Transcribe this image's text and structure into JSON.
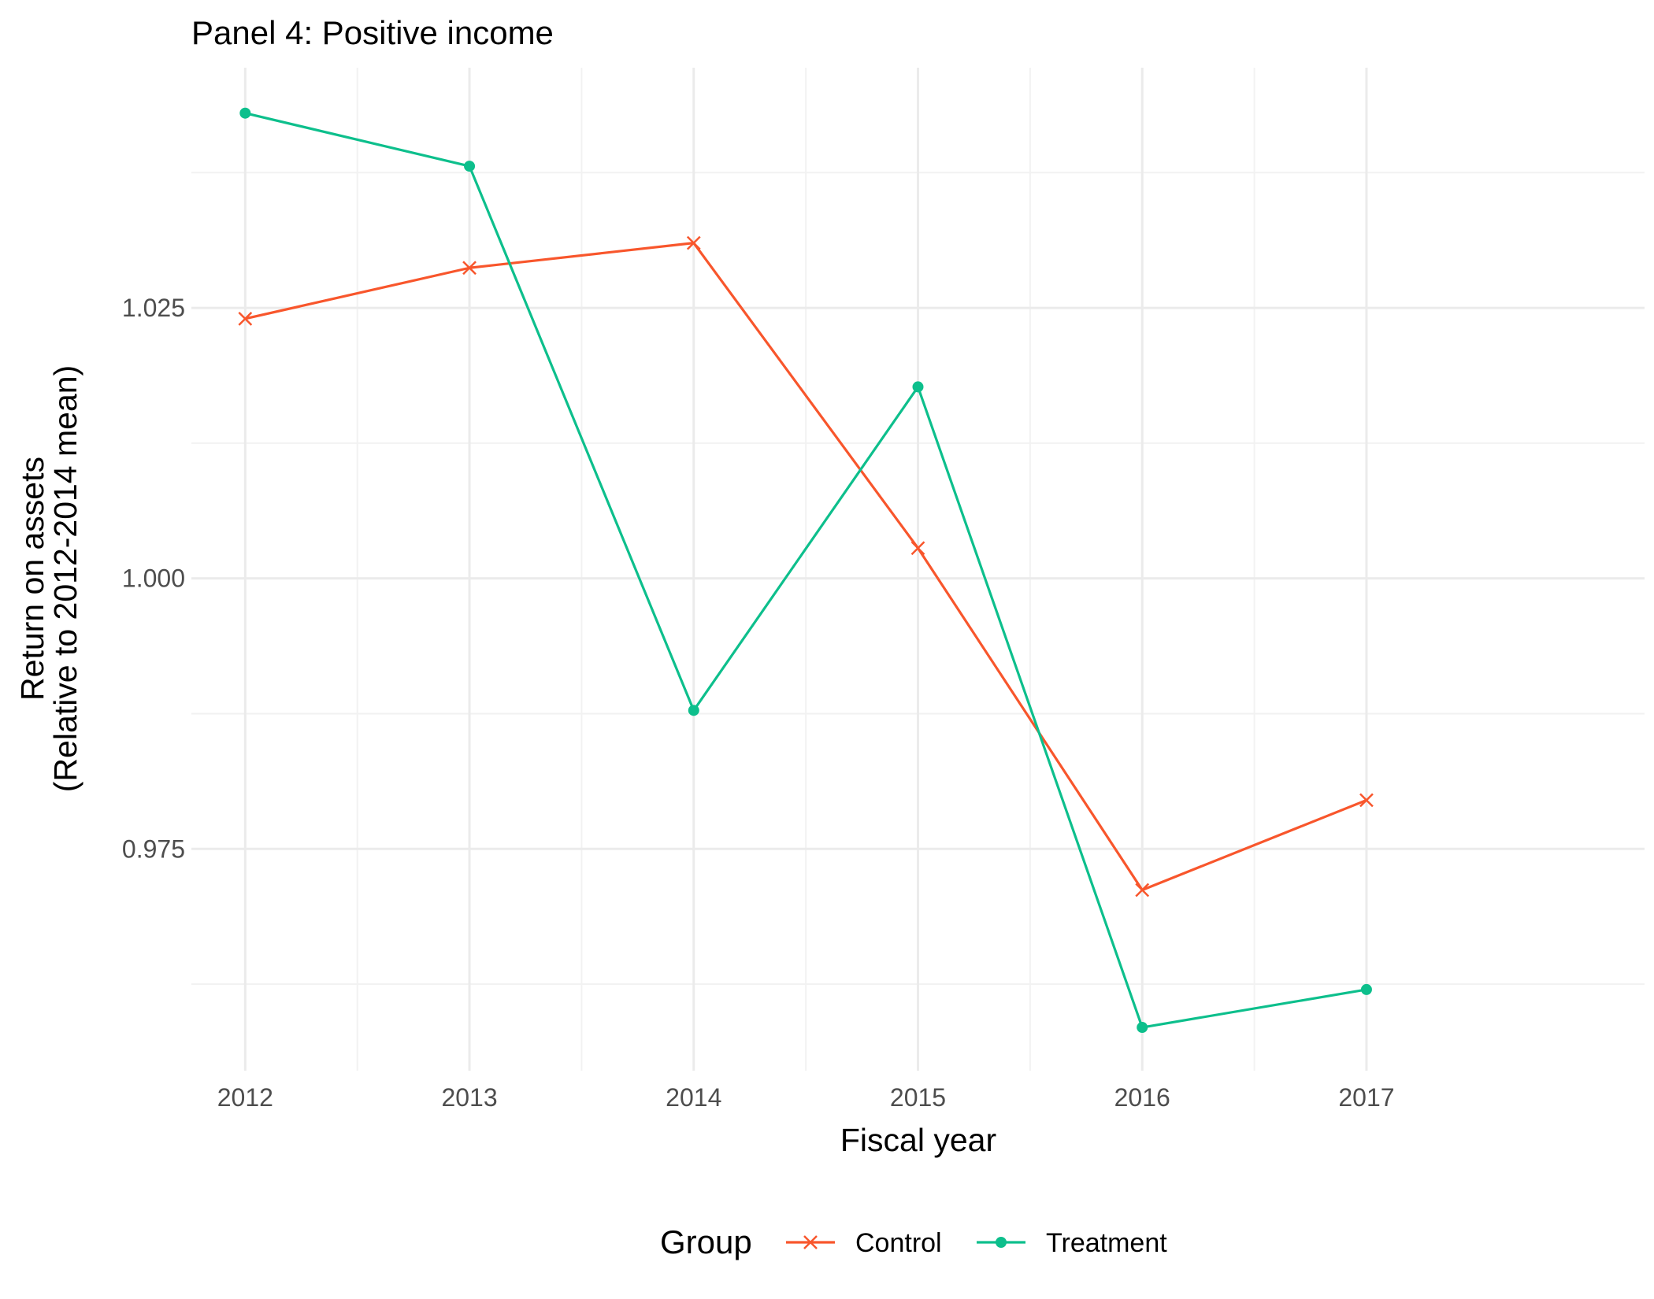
{
  "chart_data": {
    "type": "line",
    "title": "Panel 4: Positive income",
    "xlabel": "Fiscal year",
    "ylabel_line1": "Return on assets",
    "ylabel_line2": "(Relative to 2012-2014 mean)",
    "x": [
      2012,
      2013,
      2014,
      2015,
      2016,
      2017
    ],
    "x_tick_labels": [
      "2012",
      "2013",
      "2014",
      "2015",
      "2016",
      "2017"
    ],
    "y_ticks": [
      0.975,
      1.0,
      1.025
    ],
    "y_tick_labels": [
      "0.975",
      "1.000",
      "1.025"
    ],
    "xlim": [
      2011.76,
      2018.24
    ],
    "ylim": [
      0.9545,
      1.0472
    ],
    "grid": true,
    "legend": {
      "title": "Group",
      "position": "bottom"
    },
    "series": [
      {
        "name": "Control",
        "color": "#f8562c",
        "marker": "x",
        "values": [
          1.024,
          1.0287,
          1.031,
          1.0028,
          0.9712,
          0.9795
        ]
      },
      {
        "name": "Treatment",
        "color": "#0dbf8c",
        "marker": "circle",
        "values": [
          1.043,
          1.0381,
          0.9878,
          1.0177,
          0.9585,
          0.962
        ]
      }
    ]
  }
}
